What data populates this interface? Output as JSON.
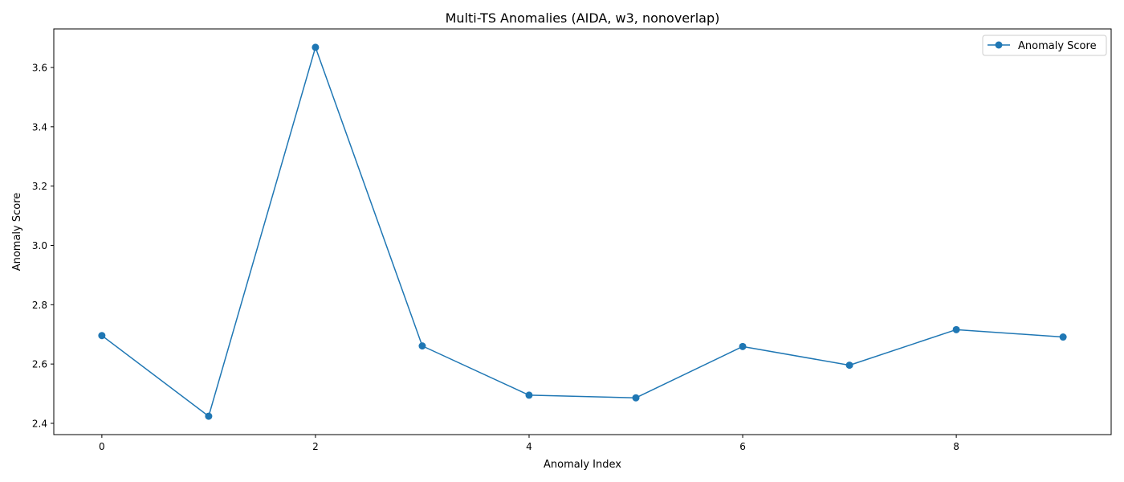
{
  "chart_data": {
    "type": "line",
    "title": "Multi-TS Anomalies (AIDA, w3, nonoverlap)",
    "xlabel": "Anomaly Index",
    "ylabel": "Anomaly Score",
    "x": [
      0,
      1,
      2,
      3,
      4,
      5,
      6,
      7,
      8,
      9
    ],
    "series": [
      {
        "name": "Anomaly Score",
        "color": "#1f77b4",
        "marker": "circle",
        "values": [
          2.696,
          2.424,
          3.668,
          2.661,
          2.495,
          2.486,
          2.659,
          2.596,
          2.716,
          2.691
        ]
      }
    ],
    "xlim": [
      -0.45,
      9.45
    ],
    "ylim": [
      2.362,
      3.73
    ],
    "xticks": [
      0,
      2,
      4,
      6,
      8
    ],
    "xtick_labels": [
      "0",
      "2",
      "4",
      "6",
      "8"
    ],
    "yticks": [
      2.4,
      2.6,
      2.8,
      3.0,
      3.2,
      3.4,
      3.6
    ],
    "ytick_labels": [
      "2.4",
      "2.6",
      "2.8",
      "3.0",
      "3.2",
      "3.4",
      "3.6"
    ],
    "grid": false,
    "legend_position": "top-right"
  }
}
